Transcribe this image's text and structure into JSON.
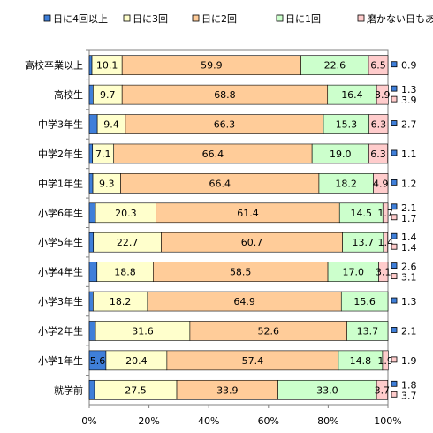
{
  "chart_data": {
    "type": "bar",
    "orientation": "horizontal",
    "stacked": true,
    "percent": true,
    "legend_position": "top",
    "xlim": [
      0,
      100
    ],
    "x_ticks": [
      "0%",
      "20%",
      "40%",
      "60%",
      "80%",
      "100%"
    ],
    "categories": [
      "高校卒業以上",
      "高校生",
      "中学3年生",
      "中学2年生",
      "中学1年生",
      "小学6年生",
      "小学5年生",
      "小学4年生",
      "小学3年生",
      "小学2年生",
      "小学1年生",
      "就学前"
    ],
    "series": [
      {
        "name": "日に4回以上",
        "color": "#3f7fd9",
        "values": [
          0.9,
          1.3,
          2.7,
          1.1,
          1.2,
          2.1,
          1.4,
          2.6,
          1.3,
          2.1,
          5.6,
          1.8
        ],
        "labels": [
          "0.9",
          "1.3",
          "2.7",
          "1.1",
          "1.2",
          "2.1",
          "1.4",
          "2.6",
          "1.3",
          "2.1",
          "5.6",
          "1.8"
        ]
      },
      {
        "name": "日に3回",
        "color": "#ffffcc",
        "values": [
          10.1,
          9.7,
          9.4,
          7.1,
          9.3,
          20.3,
          22.7,
          18.8,
          18.2,
          31.6,
          20.4,
          27.5
        ],
        "labels": [
          "10.1",
          "9.7",
          "9.4",
          "7.1",
          "9.3",
          "20.3",
          "22.7",
          "18.8",
          "18.2",
          "31.6",
          "20.4",
          "27.5"
        ]
      },
      {
        "name": "日に2回",
        "color": "#ffcc99",
        "values": [
          59.9,
          68.8,
          66.3,
          66.4,
          66.4,
          61.4,
          60.7,
          58.5,
          64.9,
          52.6,
          57.4,
          33.9
        ],
        "labels": [
          "59.9",
          "68.8",
          "66.3",
          "66.4",
          "66.4",
          "61.4",
          "60.7",
          "58.5",
          "64.9",
          "52.6",
          "57.4",
          "33.9"
        ]
      },
      {
        "name": "日に1回",
        "color": "#ccffcc",
        "values": [
          22.6,
          16.4,
          15.3,
          19.0,
          18.2,
          14.5,
          13.7,
          17.0,
          15.6,
          13.7,
          14.8,
          33.0
        ],
        "labels": [
          "22.6",
          "16.4",
          "15.3",
          "19.0",
          "18.2",
          "14.5",
          "13.7",
          "17.0",
          "15.6",
          "13.7",
          "14.8",
          "33.0"
        ]
      },
      {
        "name": "磨かない日もある",
        "color": "#ffcccc",
        "values": [
          6.5,
          3.9,
          6.3,
          6.3,
          4.9,
          1.7,
          1.4,
          3.1,
          0,
          0,
          1.9,
          3.7
        ],
        "labels": [
          "6.5",
          "3.9",
          "6.3",
          "6.3",
          "4.9",
          "1.7",
          "1.4",
          "3.1",
          "",
          "",
          "1.9",
          "3.7"
        ]
      }
    ]
  }
}
